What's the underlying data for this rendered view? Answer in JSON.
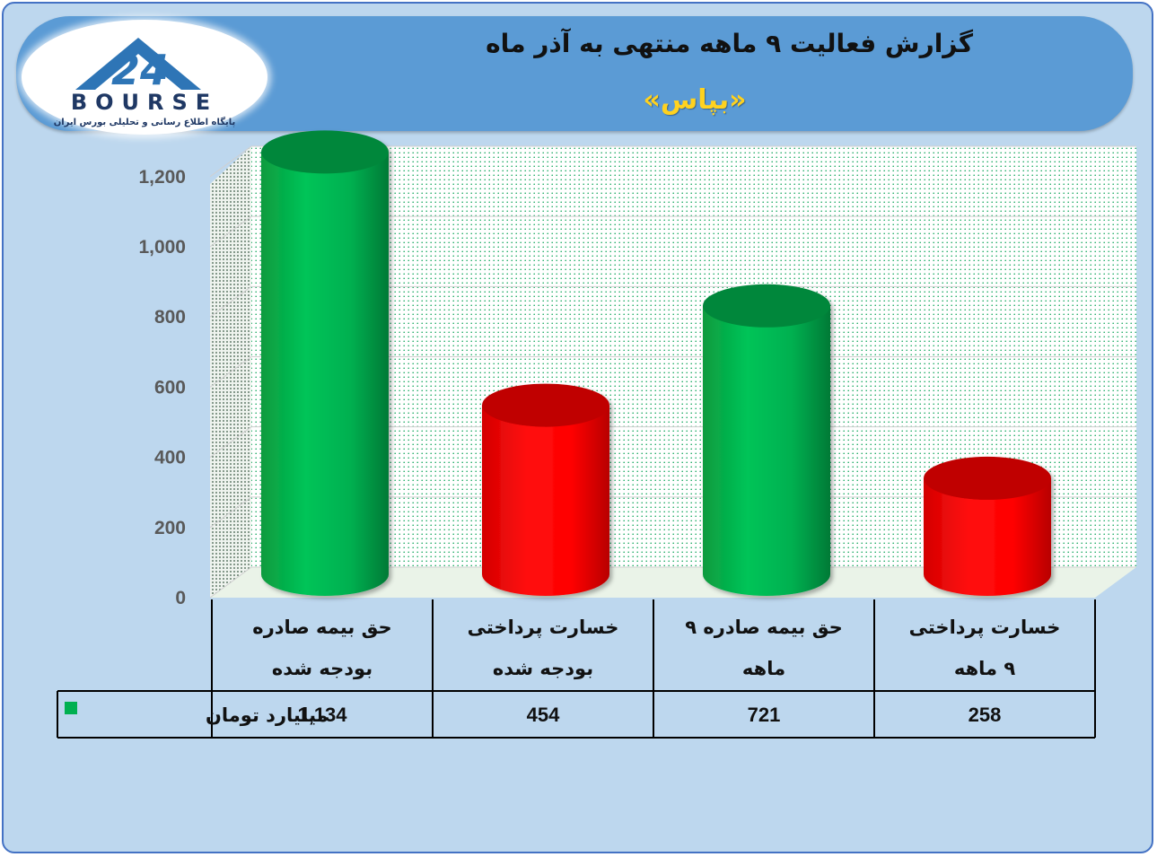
{
  "header": {
    "title": "گزارش فعالیت ۹ ماهه منتهی به آذر ماه",
    "subtitle": "«بپاس»"
  },
  "logo": {
    "brand": "BOURSE",
    "number": "24",
    "tagline": "پایگاه اطلاع رسانی و تحلیلی بورس ایران"
  },
  "colors": {
    "green": "#00b050",
    "red": "#ff0000",
    "header": "#5b9bd5",
    "background": "#bdd7ee",
    "title_accent": "#ffd21f"
  },
  "chart_data": {
    "type": "bar",
    "style": "3d-cylinder",
    "categories": [
      [
        "حق بیمه صادره",
        "بودجه شده"
      ],
      [
        "خسارت پرداختی",
        "بودجه شده"
      ],
      [
        "حق بیمه صادره ۹",
        "ماهه"
      ],
      [
        "خسارت پرداختی",
        "۹ ماهه"
      ]
    ],
    "series": [
      {
        "name": "میلیارد تومان",
        "values": [
          1134,
          454,
          721,
          258
        ],
        "value_labels": [
          "1,134",
          "454",
          "721",
          "258"
        ]
      }
    ],
    "bar_colors": [
      "#00b050",
      "#ff0000",
      "#00b050",
      "#ff0000"
    ],
    "yticks": [
      "0",
      "200",
      "400",
      "600",
      "800",
      "1,000",
      "1,200"
    ],
    "ylim": [
      0,
      1200
    ],
    "grid": true,
    "legend": "data-table"
  }
}
